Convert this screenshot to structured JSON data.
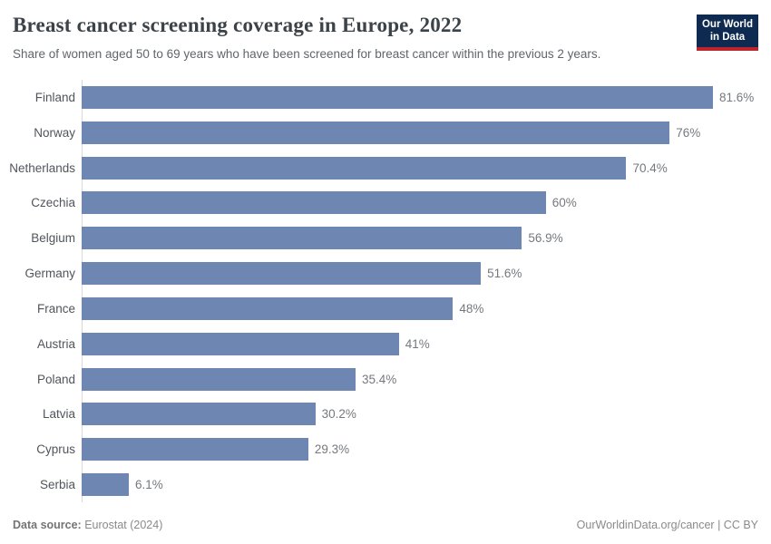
{
  "header": {
    "title": "Breast cancer screening coverage in Europe, 2022",
    "subtitle": "Share of women aged 50 to 69 years who have been screened for breast cancer within the previous 2 years.",
    "logo": {
      "line1": "Our World",
      "line2": "in Data",
      "bg_color": "#0e2a50",
      "accent_color": "#c0232b"
    }
  },
  "chart_data": {
    "type": "bar",
    "orientation": "horizontal",
    "title": "Breast cancer screening coverage in Europe, 2022",
    "subtitle": "Share of women aged 50 to 69 years who have been screened for breast cancer within the previous 2 years.",
    "categories": [
      "Finland",
      "Norway",
      "Netherlands",
      "Czechia",
      "Belgium",
      "Germany",
      "France",
      "Austria",
      "Poland",
      "Latvia",
      "Cyprus",
      "Serbia"
    ],
    "values": [
      81.6,
      76,
      70.4,
      60,
      56.9,
      51.6,
      48,
      41,
      35.4,
      30.2,
      29.3,
      6.1
    ],
    "value_labels": [
      "81.6%",
      "76%",
      "70.4%",
      "60%",
      "56.9%",
      "51.6%",
      "48%",
      "41%",
      "35.4%",
      "30.2%",
      "29.3%",
      "6.1%"
    ],
    "unit": "%",
    "xlabel": "",
    "ylabel": "",
    "xlim": [
      0,
      81.6
    ],
    "grid": false,
    "legend": false,
    "bar_color": "#6e87b2",
    "axis_line_color": "#dadada"
  },
  "footer": {
    "source_label": "Data source:",
    "source_value": "Eurostat (2024)",
    "link": "OurWorldinData.org/cancer",
    "separator": " | ",
    "license": "CC BY"
  }
}
